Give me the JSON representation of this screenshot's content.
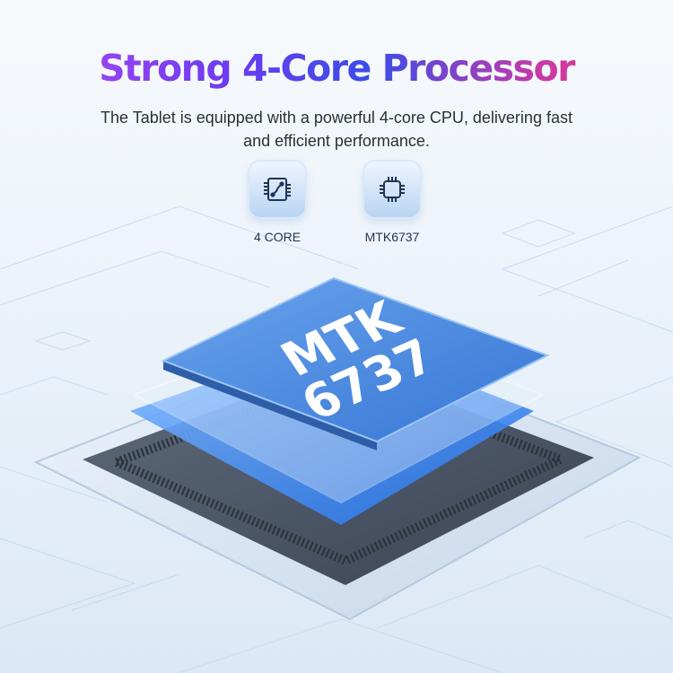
{
  "header": {
    "title": "Strong 4-Core Processor",
    "subtitle_line1": "The Tablet is equipped with a powerful 4-core CPU, delivering fast",
    "subtitle_line2": "and efficient performance."
  },
  "features": [
    {
      "icon": "circuit-board-icon",
      "label": "4 CORE"
    },
    {
      "icon": "cpu-chip-icon",
      "label": "MTK6737"
    }
  ],
  "chip": {
    "line1": "MTK",
    "line2": "6737"
  },
  "colors": {
    "accent_blue": "#3a7de0",
    "chip_top": "#4f8ee0",
    "title_start": "#b44af0",
    "title_end": "#f5366e"
  }
}
